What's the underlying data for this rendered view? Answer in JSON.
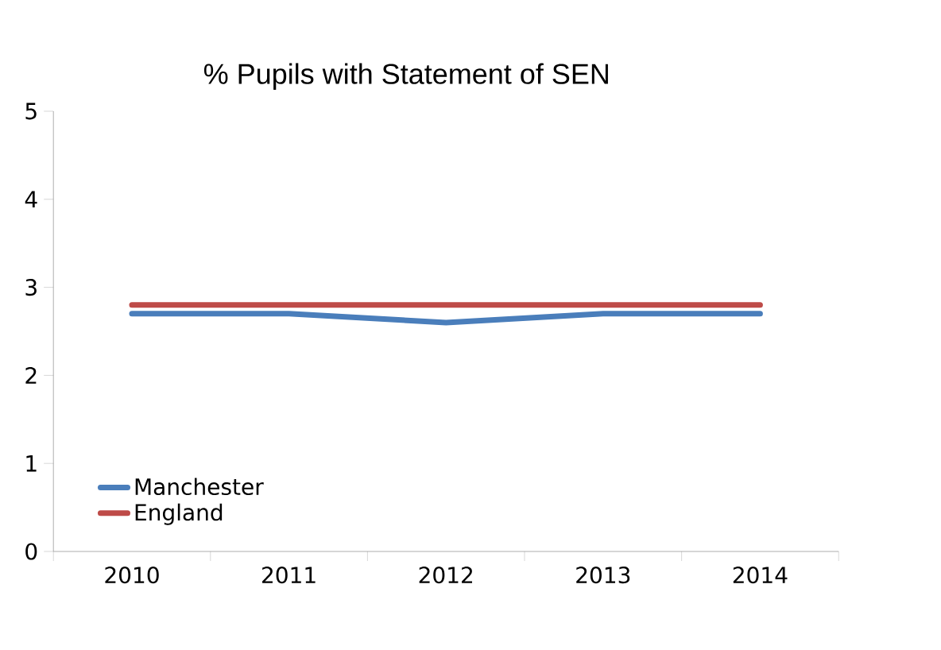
{
  "chart_data": {
    "type": "line",
    "title": "% Pupils with Statement of SEN",
    "categories": [
      "2010",
      "2011",
      "2012",
      "2013",
      "2014"
    ],
    "series": [
      {
        "name": "Manchester",
        "color": "#4a7ebb",
        "values": [
          2.7,
          2.7,
          2.6,
          2.7,
          2.7
        ]
      },
      {
        "name": "England",
        "color": "#be4b48",
        "values": [
          2.8,
          2.8,
          2.8,
          2.8,
          2.8
        ]
      }
    ],
    "ylim": [
      0,
      5
    ],
    "yticks": [
      0,
      1,
      2,
      3,
      4,
      5
    ],
    "grid": false,
    "legend": "bottom left",
    "marker": "none",
    "line_style": "solid"
  }
}
